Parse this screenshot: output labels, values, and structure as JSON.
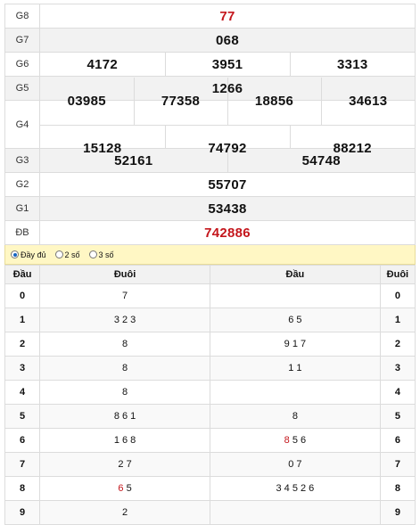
{
  "prizes": {
    "g8": {
      "label": "G8",
      "numbers": [
        "77"
      ]
    },
    "g7": {
      "label": "G7",
      "numbers": [
        "068"
      ]
    },
    "g6": {
      "label": "G6",
      "numbers": [
        "4172",
        "3951",
        "3313"
      ]
    },
    "g5": {
      "label": "G5",
      "numbers": [
        "1266"
      ]
    },
    "g4": {
      "label": "G4",
      "row1": [
        "03985",
        "77358",
        "18856",
        "34613"
      ],
      "row2": [
        "15128",
        "74792",
        "88212"
      ]
    },
    "g3": {
      "label": "G3",
      "numbers": [
        "52161",
        "54748"
      ]
    },
    "g2": {
      "label": "G2",
      "numbers": [
        "55707"
      ]
    },
    "g1": {
      "label": "G1",
      "numbers": [
        "53438"
      ]
    },
    "db": {
      "label": "ĐB",
      "numbers": [
        "742886"
      ]
    }
  },
  "options": {
    "full": "Đầy đủ",
    "two": "2 số",
    "three": "3 số",
    "selected": "full"
  },
  "loto": {
    "headers": {
      "dau_left": "Đầu",
      "duoi_left": "Đuôi",
      "dau_right": "Đầu",
      "duoi_right": "Đuôi"
    },
    "rows": [
      {
        "digit": "0",
        "left": [
          {
            "t": "7"
          }
        ],
        "right": [],
        "digit_r": "0"
      },
      {
        "digit": "1",
        "left": [
          {
            "t": "3 2 3"
          }
        ],
        "right": [
          {
            "t": "6 5"
          }
        ],
        "digit_r": "1"
      },
      {
        "digit": "2",
        "left": [
          {
            "t": "8"
          }
        ],
        "right": [
          {
            "t": "9 1 7"
          }
        ],
        "digit_r": "2"
      },
      {
        "digit": "3",
        "left": [
          {
            "t": "8"
          }
        ],
        "right": [
          {
            "t": "1 1"
          }
        ],
        "digit_r": "3"
      },
      {
        "digit": "4",
        "left": [
          {
            "t": "8"
          }
        ],
        "right": [],
        "digit_r": "4"
      },
      {
        "digit": "5",
        "left": [
          {
            "t": "8 6 1"
          }
        ],
        "right": [
          {
            "t": "8"
          }
        ],
        "digit_r": "5"
      },
      {
        "digit": "6",
        "left": [
          {
            "t": "1 6 8"
          }
        ],
        "right": [
          {
            "t": "8",
            "red": true
          },
          {
            "t": " 5 6"
          }
        ],
        "digit_r": "6"
      },
      {
        "digit": "7",
        "left": [
          {
            "t": "2 7"
          }
        ],
        "right": [
          {
            "t": "0 7"
          }
        ],
        "digit_r": "7"
      },
      {
        "digit": "8",
        "left": [
          {
            "t": "6",
            "red": true
          },
          {
            "t": " 5"
          }
        ],
        "right": [
          {
            "t": "3 4 5 2 6"
          }
        ],
        "digit_r": "8"
      },
      {
        "digit": "9",
        "left": [
          {
            "t": "2"
          }
        ],
        "right": [],
        "digit_r": "9"
      }
    ]
  }
}
